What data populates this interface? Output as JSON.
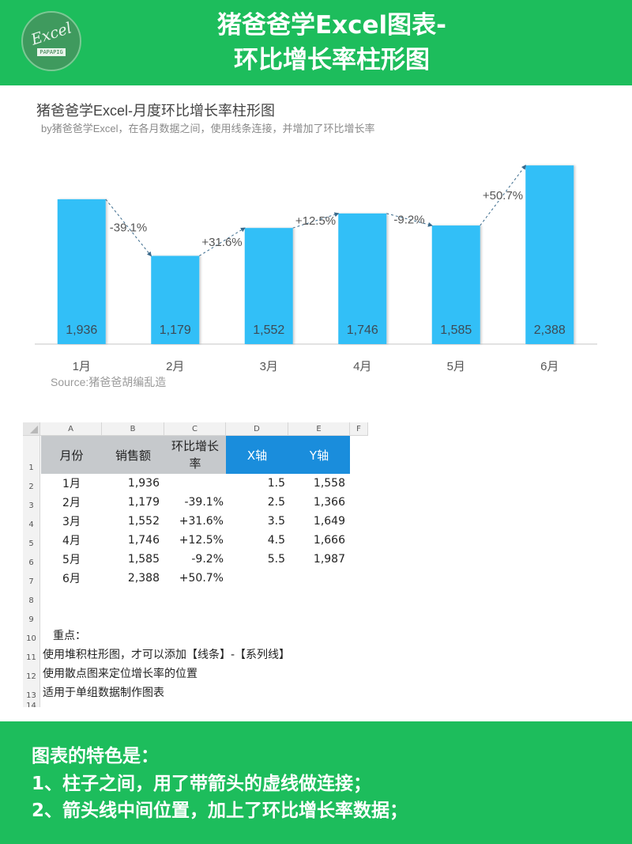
{
  "banner": {
    "title_line1": "猪爸爸学Excel图表-",
    "title_line2": "环比增长率柱形图",
    "logo_text": "Excel",
    "logo_sub": "PAPAPIG"
  },
  "colors": {
    "banner_green": "#1dbd5c",
    "bar_blue": "#33bff7",
    "header_blue": "#1a8ddc",
    "header_gray": "#c6c9cc"
  },
  "chart_data": {
    "type": "bar",
    "title": "猪爸爸学Excel-月度环比增长率柱形图",
    "subtitle": "by猪爸爸学Excel，在各月数据之间，使用线条连接，并增加了环比增长率",
    "source": "Source:猪爸爸胡编乱造",
    "categories": [
      "1月",
      "2月",
      "3月",
      "4月",
      "5月",
      "6月"
    ],
    "values": [
      1936,
      1179,
      1552,
      1746,
      1585,
      2388
    ],
    "value_labels": [
      "1,936",
      "1,179",
      "1,552",
      "1,746",
      "1,585",
      "2,388"
    ],
    "growth_labels": [
      "-39.1%",
      "+31.6%",
      "+12.5%",
      "-9.2%",
      "+50.7%"
    ],
    "scatter_points": {
      "x": [
        1.5,
        2.5,
        3.5,
        4.5,
        5.5
      ],
      "y": [
        1558,
        1366,
        1649,
        1666,
        1987
      ]
    },
    "connector_style": "dashed arrow between bar tops",
    "ylim": [
      0,
      2400
    ],
    "grid": false,
    "legend": "none"
  },
  "sheet": {
    "col_letters": [
      "A",
      "B",
      "C",
      "D",
      "E",
      "F"
    ],
    "row_numbers": [
      "1",
      "2",
      "3",
      "4",
      "5",
      "6",
      "7",
      "8",
      "9",
      "10",
      "11",
      "12",
      "13",
      "14"
    ],
    "headers": {
      "month": "月份",
      "sales": "销售额",
      "growth_l1": "环比增长",
      "growth_l2": "率",
      "x_axis": "X轴",
      "y_axis": "Y轴"
    },
    "rows": [
      {
        "month": "1月",
        "sales": "1,936",
        "growth": "",
        "x": "1.5",
        "y": "1,558"
      },
      {
        "month": "2月",
        "sales": "1,179",
        "growth": "-39.1%",
        "x": "2.5",
        "y": "1,366"
      },
      {
        "month": "3月",
        "sales": "1,552",
        "growth": "+31.6%",
        "x": "3.5",
        "y": "1,649"
      },
      {
        "month": "4月",
        "sales": "1,746",
        "growth": "+12.5%",
        "x": "4.5",
        "y": "1,666"
      },
      {
        "month": "5月",
        "sales": "1,585",
        "growth": "-9.2%",
        "x": "5.5",
        "y": "1,987"
      },
      {
        "month": "6月",
        "sales": "2,388",
        "growth": "+50.7%",
        "x": "",
        "y": ""
      }
    ],
    "notes": {
      "title": "重点：",
      "line1": "使用堆积柱形图，才可以添加【线条】-【系列线】",
      "line2": "使用散点图来定位增长率的位置",
      "line3": "适用于单组数据制作图表"
    }
  },
  "features": {
    "title": "图表的特色是：",
    "item1": "1、柱子之间，用了带箭头的虚线做连接；",
    "item2": "2、箭头线中间位置，加上了环比增长率数据；"
  }
}
